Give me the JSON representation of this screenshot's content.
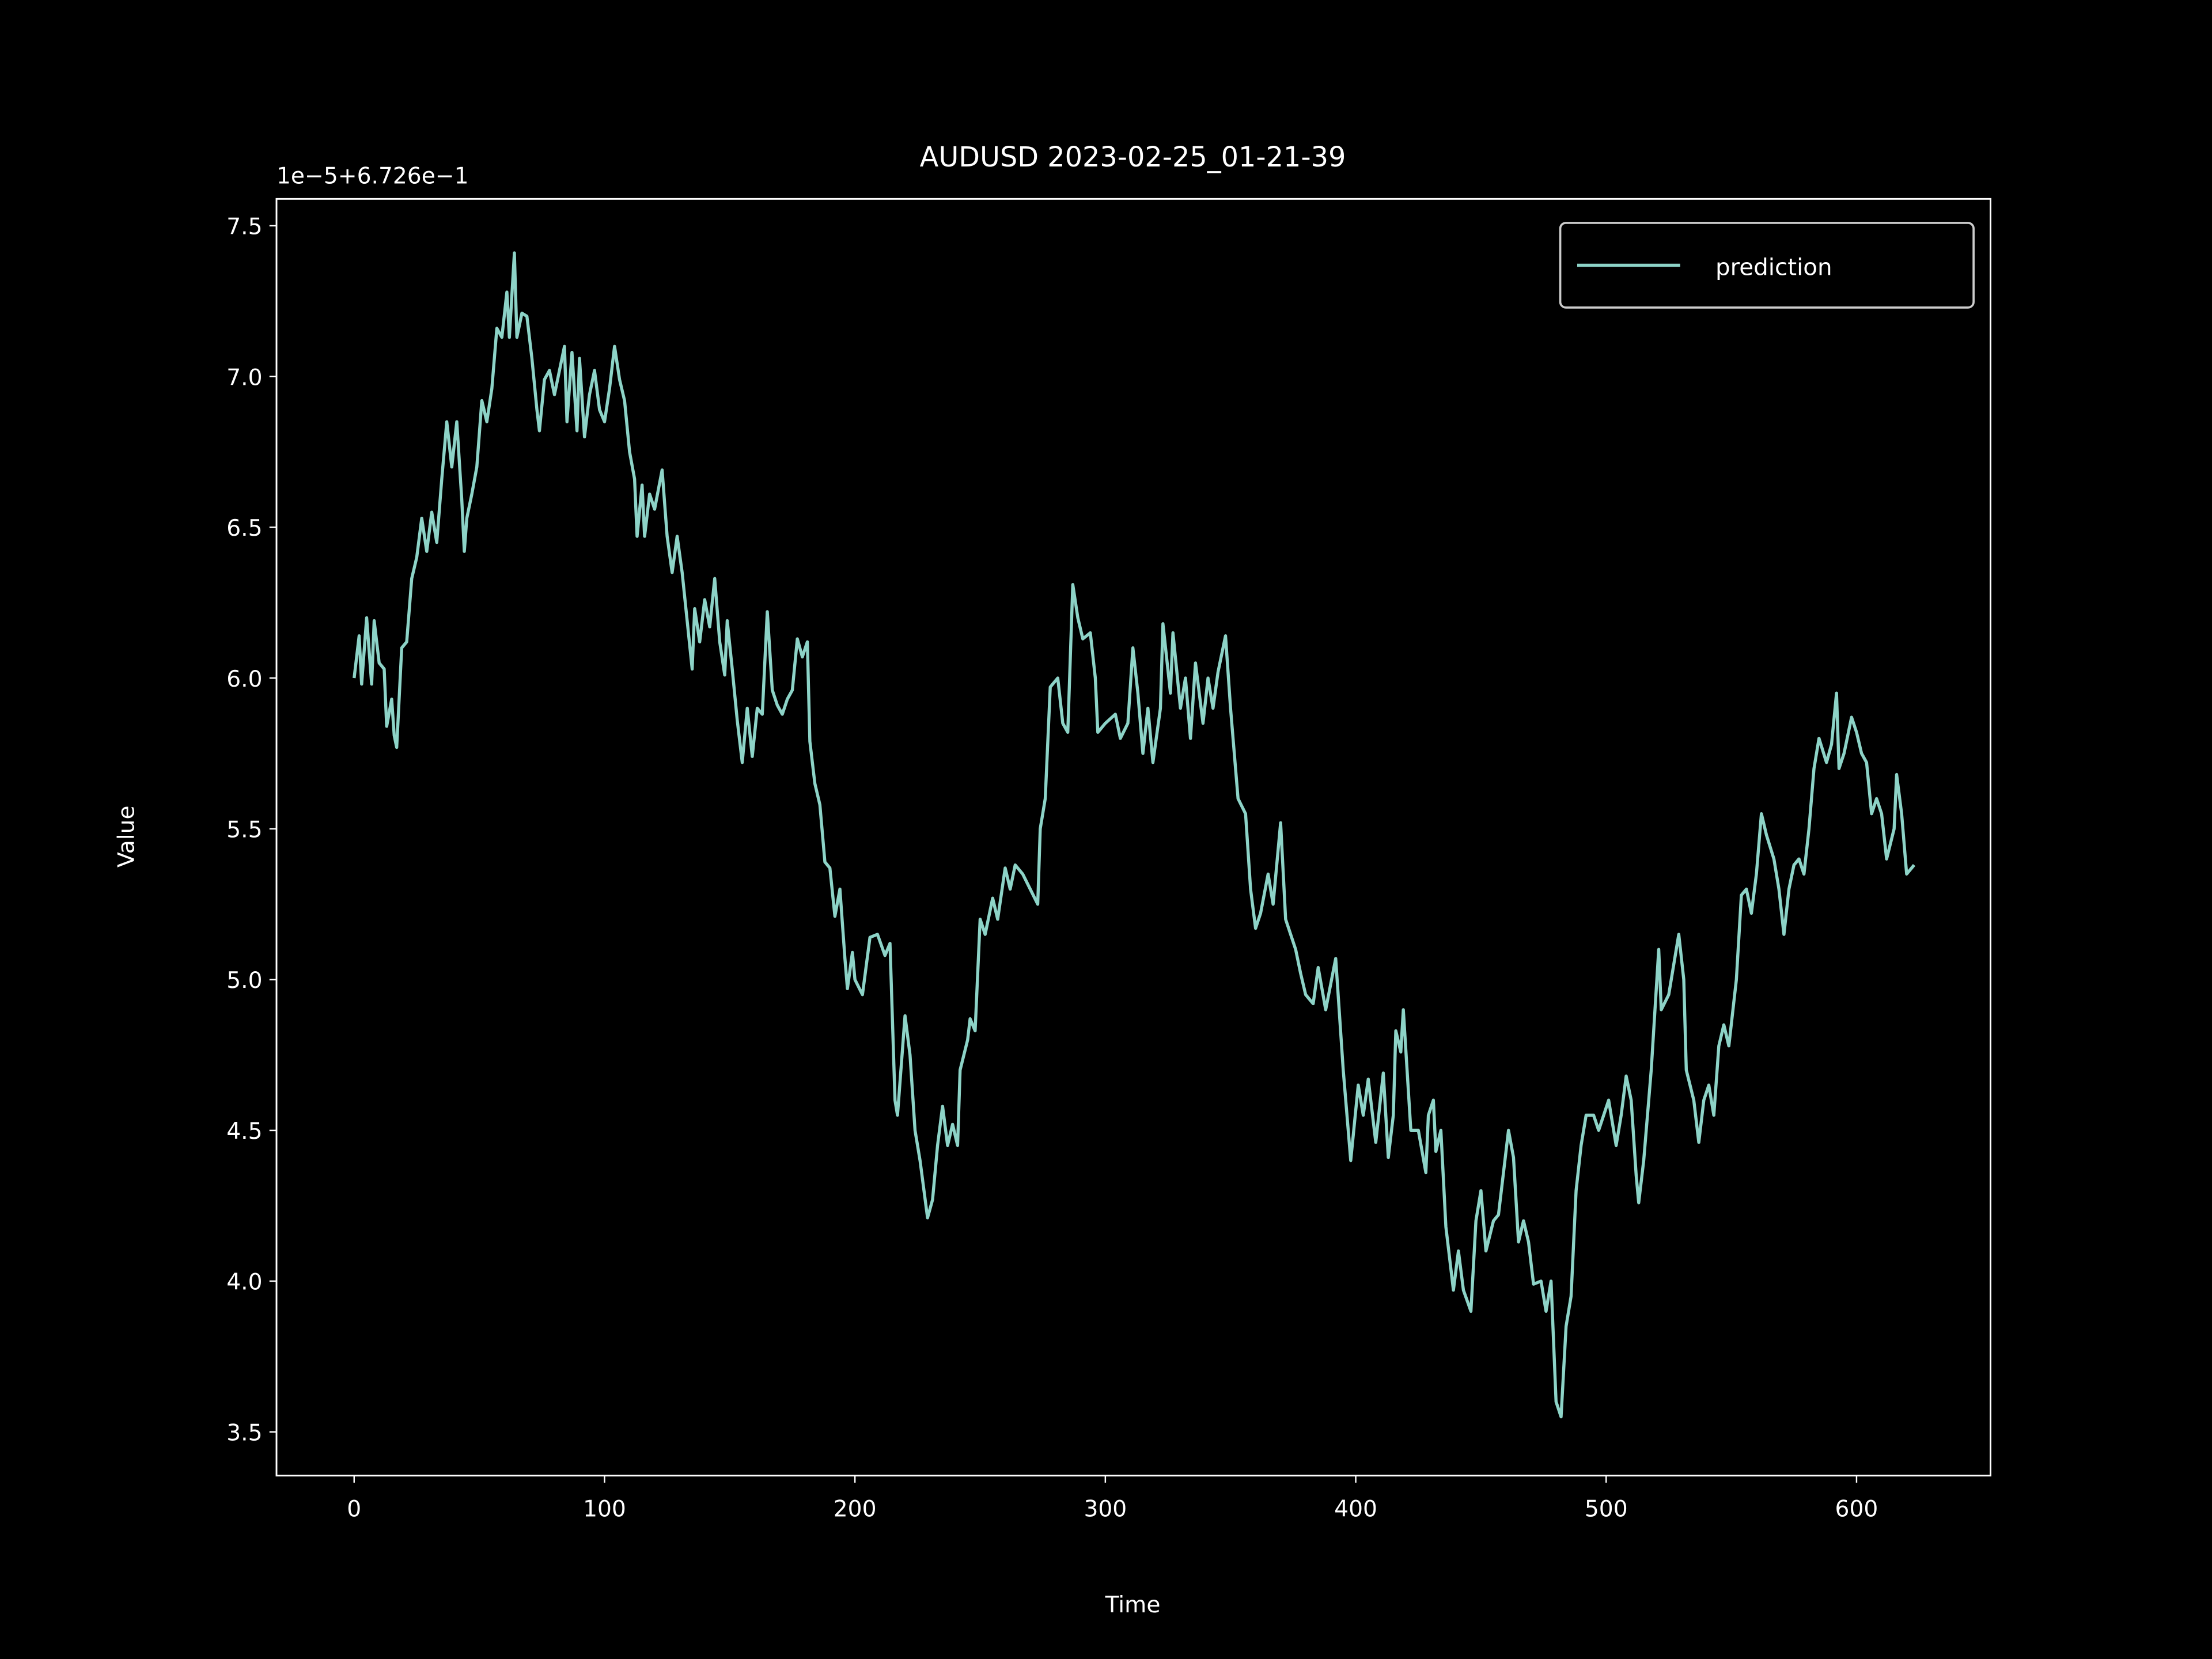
{
  "chart_data": {
    "type": "line",
    "title": "AUDUSD 2023-02-25_01-21-39",
    "y_offset_text": "1e−5+6.726e−1",
    "xlabel": "Time",
    "ylabel": "Value",
    "x": [
      0,
      2,
      3,
      5,
      7,
      8,
      10,
      12,
      13,
      15,
      16,
      17,
      19,
      21,
      23,
      25,
      27,
      29,
      31,
      33,
      35,
      37,
      39,
      41,
      43,
      44,
      45,
      47,
      49,
      51,
      53,
      55,
      57,
      59,
      61,
      62,
      64,
      65,
      67,
      69,
      71,
      73,
      74,
      76,
      78,
      80,
      82,
      84,
      85,
      87,
      89,
      90,
      92,
      94,
      96,
      98,
      100,
      102,
      104,
      106,
      108,
      110,
      112,
      113,
      115,
      116,
      118,
      120,
      123,
      125,
      127,
      129,
      131,
      133,
      135,
      136,
      138,
      140,
      142,
      144,
      146,
      148,
      149,
      151,
      153,
      155,
      157,
      159,
      161,
      163,
      165,
      167,
      169,
      171,
      173,
      175,
      177,
      179,
      181,
      182,
      184,
      186,
      188,
      190,
      192,
      194,
      196,
      197,
      199,
      200,
      203,
      206,
      209,
      212,
      214,
      216,
      217,
      220,
      222,
      224,
      226,
      229,
      231,
      233,
      235,
      237,
      239,
      241,
      242,
      245,
      246,
      248,
      250,
      252,
      255,
      257,
      260,
      262,
      264,
      267,
      270,
      273,
      274,
      276,
      278,
      281,
      283,
      285,
      287,
      289,
      291,
      294,
      296,
      297,
      300,
      304,
      306,
      309,
      311,
      313,
      315,
      317,
      319,
      322,
      323,
      326,
      327,
      330,
      332,
      334,
      336,
      339,
      341,
      343,
      345,
      348,
      350,
      352,
      353,
      356,
      358,
      360,
      362,
      365,
      367,
      370,
      372,
      376,
      378,
      380,
      383,
      385,
      388,
      392,
      395,
      398,
      401,
      403,
      405,
      408,
      411,
      413,
      415,
      416,
      418,
      419,
      422,
      425,
      428,
      429,
      431,
      432,
      434,
      436,
      439,
      441,
      443,
      446,
      448,
      450,
      452,
      455,
      457,
      459,
      461,
      463,
      465,
      467,
      469,
      471,
      474,
      476,
      478,
      480,
      482,
      484,
      486,
      488,
      490,
      492,
      495,
      497,
      499,
      501,
      504,
      506,
      508,
      510,
      512,
      513,
      515,
      518,
      521,
      522,
      525,
      527,
      529,
      531,
      532,
      535,
      537,
      539,
      541,
      543,
      545,
      547,
      549,
      552,
      554,
      556,
      558,
      560,
      562,
      564,
      567,
      569,
      571,
      573,
      575,
      577,
      579,
      581,
      583,
      585,
      588,
      590,
      592,
      593,
      595,
      598,
      600,
      602,
      604,
      606,
      608,
      610,
      612,
      615,
      616,
      618,
      620,
      621,
      623
    ],
    "series": [
      {
        "name": "prediction",
        "color": "#8dd3c7",
        "values": [
          6.0,
          6.14,
          5.98,
          6.2,
          5.98,
          6.19,
          6.05,
          6.03,
          5.84,
          5.93,
          5.81,
          5.77,
          6.1,
          6.12,
          6.33,
          6.4,
          6.53,
          6.42,
          6.55,
          6.45,
          6.66,
          6.85,
          6.7,
          6.85,
          6.59,
          6.42,
          6.53,
          6.61,
          6.7,
          6.92,
          6.85,
          6.96,
          7.16,
          7.13,
          7.28,
          7.13,
          7.41,
          7.13,
          7.21,
          7.2,
          7.06,
          6.89,
          6.82,
          6.99,
          7.02,
          6.94,
          7.02,
          7.1,
          6.85,
          7.08,
          6.82,
          7.06,
          6.8,
          6.94,
          7.02,
          6.89,
          6.85,
          6.96,
          7.1,
          6.99,
          6.92,
          6.75,
          6.66,
          6.47,
          6.64,
          6.47,
          6.61,
          6.56,
          6.69,
          6.47,
          6.35,
          6.47,
          6.35,
          6.19,
          6.03,
          6.23,
          6.12,
          6.26,
          6.17,
          6.33,
          6.12,
          6.01,
          6.19,
          6.03,
          5.86,
          5.72,
          5.9,
          5.74,
          5.9,
          5.88,
          6.22,
          5.96,
          5.91,
          5.88,
          5.93,
          5.96,
          6.13,
          6.07,
          6.12,
          5.79,
          5.65,
          5.58,
          5.39,
          5.37,
          5.21,
          5.3,
          5.07,
          4.97,
          5.09,
          5.0,
          4.95,
          5.14,
          5.15,
          5.08,
          5.12,
          4.6,
          4.55,
          4.88,
          4.75,
          4.5,
          4.4,
          4.21,
          4.27,
          4.45,
          4.58,
          4.45,
          4.52,
          4.45,
          4.7,
          4.8,
          4.87,
          4.83,
          5.2,
          5.15,
          5.27,
          5.2,
          5.37,
          5.3,
          5.38,
          5.35,
          5.3,
          5.25,
          5.5,
          5.6,
          5.97,
          6.0,
          5.85,
          5.82,
          6.31,
          6.2,
          6.13,
          6.15,
          6.0,
          5.82,
          5.85,
          5.88,
          5.8,
          5.85,
          6.1,
          5.95,
          5.75,
          5.9,
          5.72,
          5.9,
          6.18,
          5.95,
          6.15,
          5.9,
          6.0,
          5.8,
          6.05,
          5.85,
          6.0,
          5.9,
          6.02,
          6.14,
          5.9,
          5.7,
          5.6,
          5.55,
          5.3,
          5.17,
          5.22,
          5.35,
          5.25,
          5.52,
          5.2,
          5.1,
          5.02,
          4.95,
          4.92,
          5.04,
          4.9,
          5.07,
          4.7,
          4.4,
          4.65,
          4.55,
          4.67,
          4.46,
          4.69,
          4.41,
          4.55,
          4.83,
          4.76,
          4.9,
          4.5,
          4.5,
          4.36,
          4.55,
          4.6,
          4.43,
          4.5,
          4.18,
          3.97,
          4.1,
          3.97,
          3.9,
          4.2,
          4.3,
          4.1,
          4.2,
          4.22,
          4.36,
          4.5,
          4.41,
          4.13,
          4.2,
          4.13,
          3.99,
          4.0,
          3.9,
          4.0,
          3.6,
          3.55,
          3.85,
          3.95,
          4.3,
          4.45,
          4.55,
          4.55,
          4.5,
          4.55,
          4.6,
          4.45,
          4.55,
          4.68,
          4.6,
          4.35,
          4.26,
          4.4,
          4.7,
          5.1,
          4.9,
          4.95,
          5.05,
          5.15,
          5.0,
          4.7,
          4.6,
          4.46,
          4.6,
          4.65,
          4.55,
          4.78,
          4.85,
          4.78,
          5.0,
          5.28,
          5.3,
          5.22,
          5.35,
          5.55,
          5.48,
          5.4,
          5.3,
          5.15,
          5.3,
          5.38,
          5.4,
          5.35,
          5.5,
          5.7,
          5.8,
          5.72,
          5.78,
          5.95,
          5.7,
          5.75,
          5.87,
          5.82,
          5.75,
          5.72,
          5.55,
          5.6,
          5.55,
          5.4,
          5.5,
          5.68,
          5.55,
          5.35,
          5.36,
          5.38
        ]
      }
    ],
    "xlim": [
      -31,
      653.5
    ],
    "ylim": [
      3.355,
      7.589
    ],
    "xticks": [
      0,
      100,
      200,
      300,
      400,
      500,
      600
    ],
    "yticks": [
      3.5,
      {
        "value": 4,
        "label": "4.0"
      },
      4.5,
      {
        "value": 5,
        "label": "5.0"
      },
      5.5,
      {
        "value": 6,
        "label": "6.0"
      },
      6.5,
      {
        "value": 7,
        "label": "7.0"
      },
      7.5
    ],
    "legend": "upper right",
    "grid": false
  }
}
